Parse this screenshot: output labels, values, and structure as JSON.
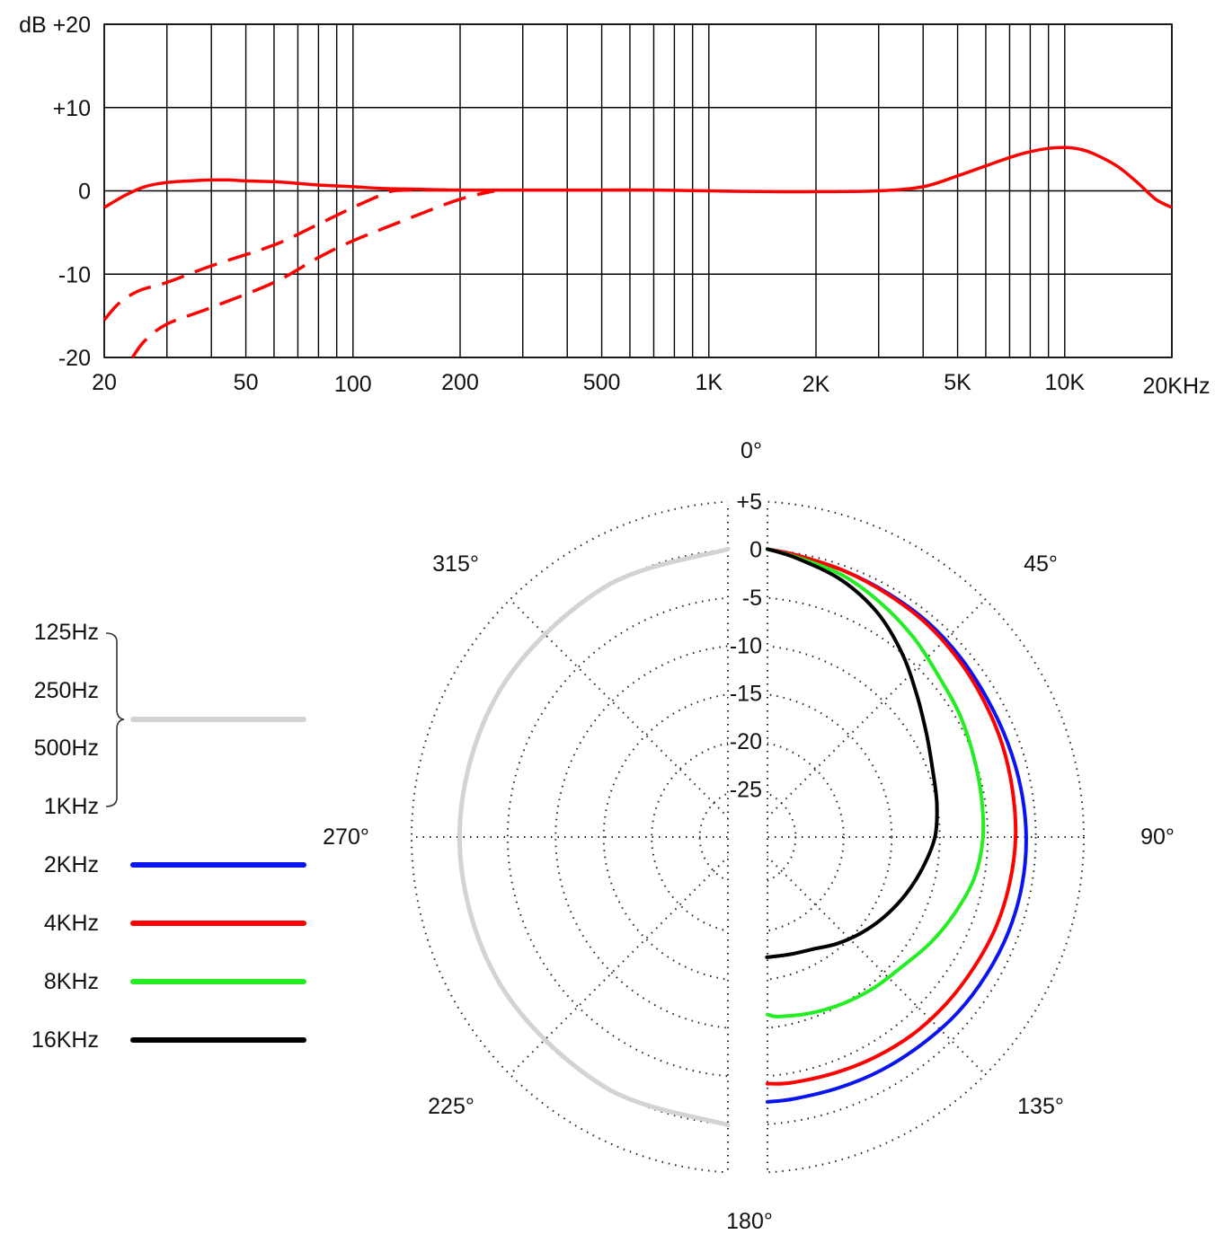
{
  "chart_data": [
    {
      "type": "line",
      "x_scale": "log",
      "xlim": [
        20,
        20000
      ],
      "ylim": [
        -20,
        20
      ],
      "x_ticks": [
        20,
        50,
        100,
        200,
        500,
        1000,
        2000,
        5000,
        10000,
        20000
      ],
      "x_tick_labels": [
        "20",
        "50",
        "100",
        "200",
        "500",
        "1K",
        "2K",
        "5K",
        "10K",
        "20KHz"
      ],
      "y_ticks": [
        -20,
        -10,
        0,
        10,
        20
      ],
      "y_tick_labels": [
        "-20",
        "-10",
        "0",
        "+10",
        "dB  +20"
      ],
      "grid": true,
      "series": [
        {
          "color": "#ff0000",
          "style": "solid",
          "x": [
            20,
            23,
            26,
            30,
            35,
            40,
            45,
            50,
            60,
            70,
            80,
            100,
            120,
            150,
            200,
            300,
            500,
            700,
            1000,
            1500,
            2000,
            3000,
            4000,
            5000,
            6000,
            7000,
            8000,
            9000,
            10000,
            11000,
            12000,
            14000,
            16000,
            18000,
            20000
          ],
          "y": [
            -2,
            -0.5,
            0.5,
            1,
            1.2,
            1.3,
            1.3,
            1.2,
            1.1,
            0.9,
            0.7,
            0.5,
            0.3,
            0.2,
            0.1,
            0.1,
            0.1,
            0.1,
            0,
            -0.1,
            -0.1,
            0,
            0.5,
            1.8,
            3,
            4,
            4.7,
            5.1,
            5.2,
            5,
            4.5,
            3,
            1,
            -1,
            -2
          ]
        },
        {
          "color": "#ff0000",
          "style": "dashed",
          "x": [
            20,
            22,
            25,
            30,
            40,
            60,
            80,
            100,
            120,
            130,
            150,
            200
          ],
          "y": [
            -15.5,
            -13.5,
            -12,
            -11,
            -9,
            -6.5,
            -4,
            -2,
            -0.5,
            0,
            0.1,
            0.1
          ]
        },
        {
          "color": "#ff0000",
          "style": "dashed",
          "x": [
            24,
            26,
            30,
            40,
            60,
            80,
            100,
            150,
            200,
            250
          ],
          "y": [
            -20,
            -18,
            -16,
            -14,
            -11,
            -8,
            -6,
            -3,
            -1,
            0
          ]
        }
      ]
    },
    {
      "type": "polar",
      "radial_ticks": [
        "+5",
        "0",
        "-5",
        "-10",
        "-15",
        "-20",
        "-25"
      ],
      "radial_range_db": [
        -30,
        5
      ],
      "angle_labels": [
        "0°",
        "45°",
        "90°",
        "135°",
        "180°",
        "225°",
        "270°",
        "315°"
      ],
      "legend": {
        "group_labels": [
          "125Hz",
          "250Hz",
          "500Hz",
          "1KHz"
        ],
        "group_color": "#d3d3d3",
        "items": [
          {
            "label": "2KHz",
            "color": "#0a14f0"
          },
          {
            "label": "4KHz",
            "color": "#ff0000"
          },
          {
            "label": "8KHz",
            "color": "#22ee22"
          },
          {
            "label": "16KHz",
            "color": "#000000"
          }
        ]
      },
      "series": [
        {
          "name": "125Hz–1KHz",
          "color": "#d3d3d3",
          "side": "left",
          "angles": [
            0,
            30,
            60,
            90,
            120,
            150,
            180
          ],
          "db": [
            0,
            0,
            0,
            0,
            0,
            0,
            0
          ]
        },
        {
          "name": "2KHz",
          "color": "#0a14f0",
          "side": "right",
          "angles": [
            0,
            10,
            20,
            30,
            40,
            50,
            60,
            70,
            80,
            90,
            100,
            110,
            120,
            130,
            140,
            150,
            160,
            170,
            180
          ],
          "db": [
            0,
            -0.2,
            -0.5,
            -0.7,
            -0.8,
            -1,
            -1.2,
            -1.2,
            -1.1,
            -1,
            -1,
            -1.1,
            -1.3,
            -1.5,
            -1.8,
            -2,
            -2.2,
            -2.3,
            -2.4
          ]
        },
        {
          "name": "4KHz",
          "color": "#ff0000",
          "side": "right",
          "angles": [
            0,
            10,
            20,
            30,
            40,
            50,
            60,
            70,
            80,
            90,
            100,
            110,
            120,
            130,
            140,
            150,
            160,
            170,
            180
          ],
          "db": [
            0,
            -0.2,
            -0.5,
            -0.8,
            -1,
            -1.3,
            -1.6,
            -1.8,
            -2,
            -2.1,
            -2.3,
            -2.5,
            -2.8,
            -3,
            -3.2,
            -3.5,
            -3.8,
            -4,
            -4.3
          ]
        },
        {
          "name": "8KHz",
          "color": "#22ee22",
          "side": "right",
          "angles": [
            0,
            10,
            20,
            30,
            40,
            50,
            60,
            70,
            80,
            90,
            100,
            110,
            120,
            130,
            140,
            150,
            160,
            170,
            180
          ],
          "db": [
            0,
            -0.4,
            -1,
            -2,
            -3,
            -4,
            -4.5,
            -5,
            -5.3,
            -5.5,
            -6,
            -7,
            -8,
            -9,
            -9.5,
            -10,
            -10.5,
            -11,
            -11.5
          ]
        },
        {
          "name": "16KHz",
          "color": "#000000",
          "side": "right",
          "angles": [
            0,
            10,
            20,
            30,
            40,
            50,
            60,
            70,
            80,
            90,
            100,
            110,
            120,
            130,
            140,
            150,
            160,
            170,
            180
          ],
          "db": [
            0,
            -0.5,
            -1.5,
            -3,
            -5,
            -7,
            -8.5,
            -9.5,
            -10,
            -10.5,
            -11.5,
            -12.5,
            -13.5,
            -14.5,
            -15.5,
            -16.5,
            -17,
            -17.3,
            -17.5
          ]
        }
      ]
    }
  ]
}
